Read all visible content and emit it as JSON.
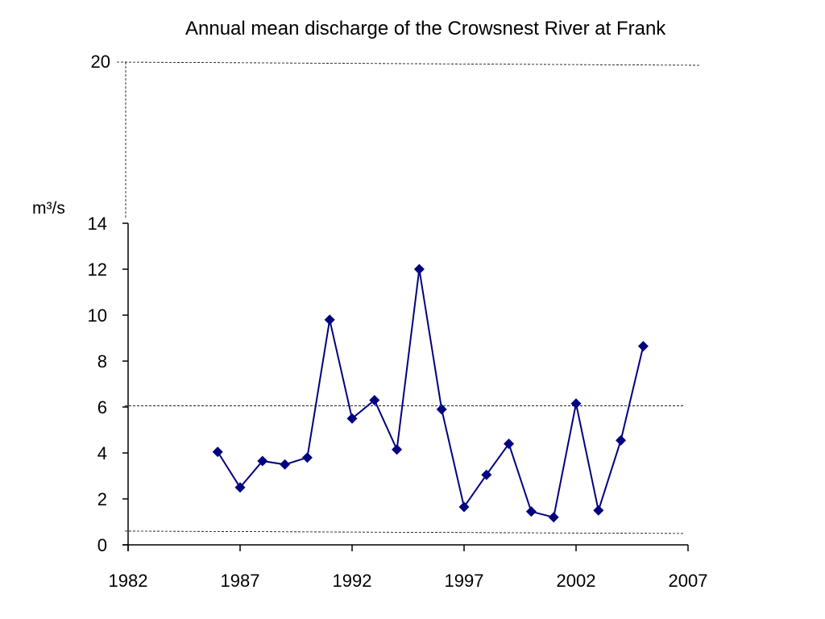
{
  "chart_data": {
    "type": "line",
    "title": "Annual mean discharge of the Crowsnest River at Frank",
    "ylabel": "m³/s",
    "xlim": [
      1982,
      2007
    ],
    "ylim": [
      0,
      14
    ],
    "x_ticks": [
      "1982",
      "1987",
      "1992",
      "1997",
      "2002",
      "2007"
    ],
    "y_ticks": [
      "0",
      "2",
      "4",
      "6",
      "8",
      "10",
      "12",
      "14"
    ],
    "y_extra_label": "20",
    "grid": false,
    "color": "#000080",
    "series": [
      {
        "x": [
          1986,
          1987,
          1988,
          1989,
          1990,
          1991,
          1992,
          1993,
          1994,
          1995,
          1996,
          1997,
          1998,
          1999,
          2000,
          2001,
          2002,
          2003,
          2004,
          2005
        ],
        "y": [
          4.05,
          2.5,
          3.65,
          3.5,
          3.8,
          9.8,
          5.5,
          6.3,
          4.15,
          12.0,
          5.9,
          1.65,
          3.05,
          4.4,
          1.45,
          1.2,
          6.15,
          1.5,
          4.55,
          8.65
        ]
      }
    ],
    "reference_lines": [
      {
        "y": 6.05,
        "style": "dashed"
      },
      {
        "y": 0.6,
        "style": "dashed"
      }
    ]
  }
}
